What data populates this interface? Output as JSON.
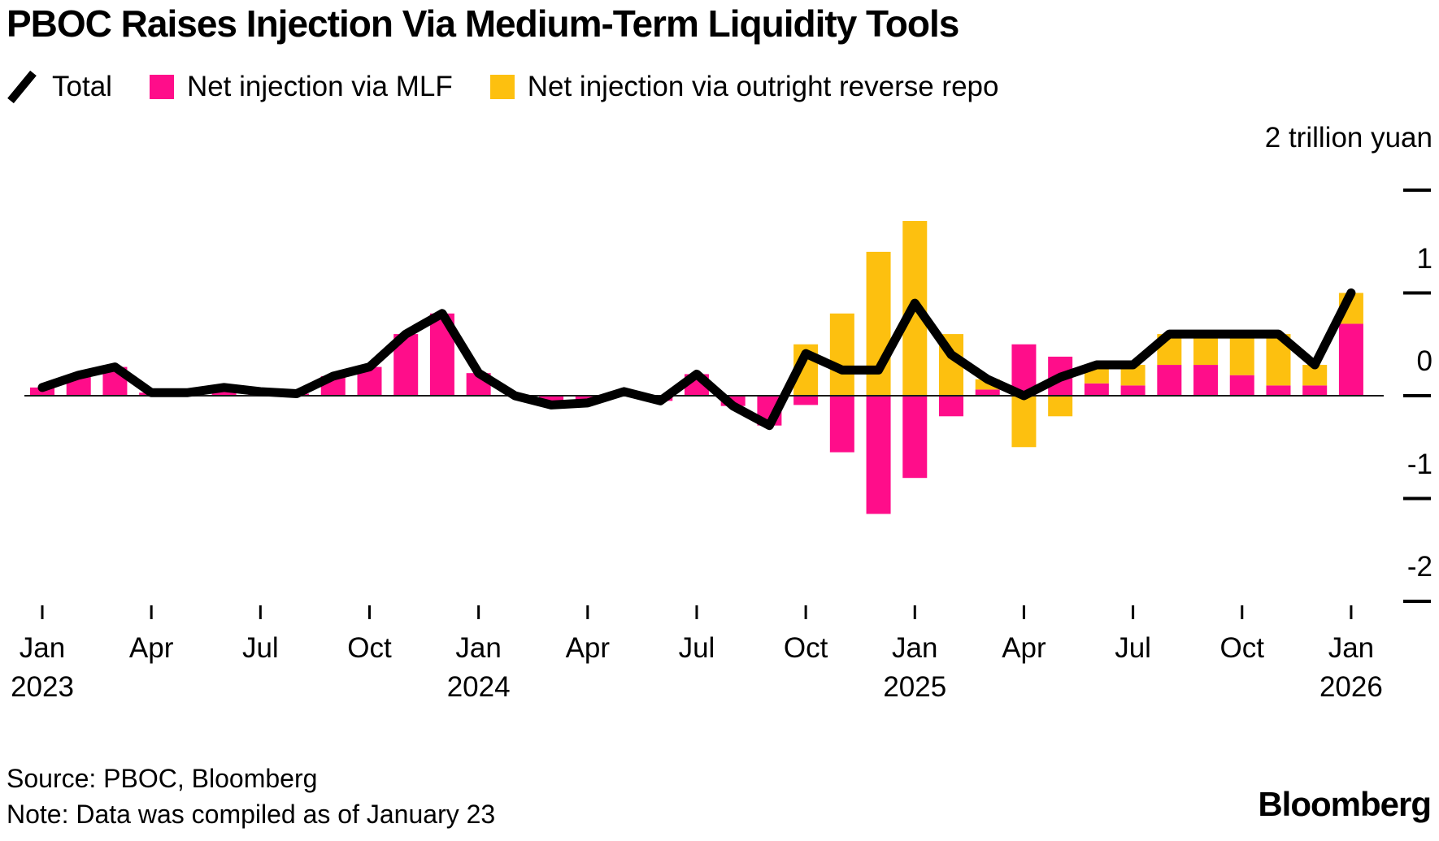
{
  "title": "PBOC Raises Injection Via Medium-Term Liquidity Tools",
  "legend": {
    "items": [
      {
        "label": "Total",
        "marker": "line-slash",
        "color": "#000000"
      },
      {
        "label": "Net injection via MLF",
        "marker": "square",
        "color": "#ff0d8a"
      },
      {
        "label": "Net injection via outright reverse repo",
        "marker": "square",
        "color": "#fdc00f"
      }
    ]
  },
  "y_axis": {
    "unit_label": "2 trillion yuan",
    "ticks": [
      {
        "label": "2 trillion yuan",
        "value": 2
      },
      {
        "label": "1",
        "value": 1
      },
      {
        "label": "0",
        "value": 0
      },
      {
        "label": "-1",
        "value": -1
      },
      {
        "label": "-2",
        "value": -2
      }
    ]
  },
  "x_axis": {
    "ticks": [
      {
        "label": "Jan",
        "year": "2023",
        "month_index": 0
      },
      {
        "label": "Apr",
        "month_index": 3
      },
      {
        "label": "Jul",
        "month_index": 6
      },
      {
        "label": "Oct",
        "month_index": 9
      },
      {
        "label": "Jan",
        "year": "2024",
        "month_index": 12
      },
      {
        "label": "Apr",
        "month_index": 15
      },
      {
        "label": "Jul",
        "month_index": 18
      },
      {
        "label": "Oct",
        "month_index": 21
      },
      {
        "label": "Jan",
        "year": "2025",
        "month_index": 24
      },
      {
        "label": "Apr",
        "month_index": 27
      },
      {
        "label": "Jul",
        "month_index": 30
      },
      {
        "label": "Oct",
        "month_index": 33
      },
      {
        "label": "Jan",
        "year": "2026",
        "month_index": 36
      }
    ]
  },
  "footer": {
    "source": "Source: PBOC, Bloomberg",
    "note": "Note: Data was compiled as of January 23",
    "logo": "Bloomberg"
  },
  "chart_data": {
    "type": "bar",
    "subtype": "stacked-bars-with-line-overlay",
    "unit": "trillion yuan",
    "ylim": [
      -2,
      2
    ],
    "grid": false,
    "legend_position": "top",
    "x": [
      "Jan 2023",
      "Feb 2023",
      "Mar 2023",
      "Apr 2023",
      "May 2023",
      "Jun 2023",
      "Jul 2023",
      "Aug 2023",
      "Sep 2023",
      "Oct 2023",
      "Nov 2023",
      "Dec 2023",
      "Jan 2024",
      "Feb 2024",
      "Mar 2024",
      "Apr 2024",
      "May 2024",
      "Jun 2024",
      "Jul 2024",
      "Aug 2024",
      "Sep 2024",
      "Oct 2024",
      "Nov 2024",
      "Dec 2024",
      "Jan 2025",
      "Feb 2025",
      "Mar 2025",
      "Apr 2025",
      "May 2025",
      "Jun 2025",
      "Jul 2025",
      "Aug 2025",
      "Sep 2025",
      "Oct 2025",
      "Nov 2025",
      "Dec 2025",
      "Jan 2026"
    ],
    "series": [
      {
        "name": "Total",
        "type": "line",
        "color": "#000000",
        "values": [
          0.08,
          0.2,
          0.28,
          0.03,
          0.03,
          0.08,
          0.04,
          0.02,
          0.19,
          0.28,
          0.6,
          0.8,
          0.22,
          0.0,
          -0.09,
          -0.07,
          0.04,
          -0.05,
          0.21,
          -0.1,
          -0.29,
          0.41,
          0.25,
          0.25,
          0.9,
          0.4,
          0.16,
          0.0,
          0.18,
          0.3,
          0.3,
          0.6,
          0.6,
          0.6,
          0.6,
          0.3,
          1.0
        ]
      },
      {
        "name": "Net injection via MLF",
        "type": "bar",
        "color": "#ff0d8a",
        "values": [
          0.08,
          0.2,
          0.28,
          0.03,
          0.03,
          0.08,
          0.04,
          0.02,
          0.19,
          0.28,
          0.6,
          0.8,
          0.22,
          0.0,
          -0.09,
          -0.07,
          0.04,
          -0.05,
          0.21,
          -0.1,
          -0.29,
          -0.09,
          -0.55,
          -1.15,
          -0.8,
          -0.2,
          0.06,
          0.5,
          0.38,
          0.12,
          0.1,
          0.3,
          0.3,
          0.2,
          0.1,
          0.1,
          0.7
        ]
      },
      {
        "name": "Net injection via outright reverse repo",
        "type": "bar",
        "color": "#fdc00f",
        "values": [
          0,
          0,
          0,
          0,
          0,
          0,
          0,
          0,
          0,
          0,
          0,
          0,
          0,
          0,
          0,
          0,
          0,
          0,
          0,
          0,
          0,
          0.5,
          0.8,
          1.4,
          1.7,
          0.6,
          0.1,
          -0.5,
          -0.2,
          0.18,
          0.2,
          0.3,
          0.3,
          0.4,
          0.5,
          0.2,
          0.3
        ]
      }
    ]
  }
}
